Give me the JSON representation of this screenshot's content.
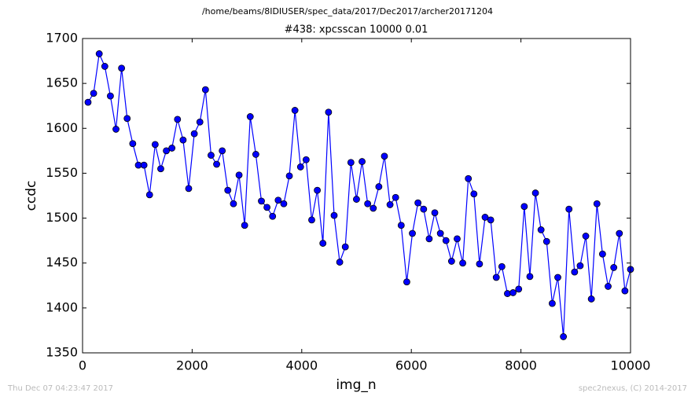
{
  "chart_data": {
    "type": "line",
    "title": "/home/beams/8IDIUSER/spec_data/2017/Dec2017/archer20171204",
    "subtitle": "#438: xpcsscan 10000 0.01",
    "x_label": "img_n",
    "y_label": "ccdc",
    "footer_left": "Thu Dec 07 04:23:47 2017",
    "footer_right": "spec2nexus, (C) 2014-2017",
    "x": [
      100,
      202,
      304,
      406,
      508,
      610,
      712,
      814,
      916,
      1019,
      1121,
      1223,
      1325,
      1427,
      1529,
      1631,
      1733,
      1835,
      1937,
      2039,
      2141,
      2243,
      2345,
      2447,
      2549,
      2651,
      2754,
      2856,
      2958,
      3060,
      3162,
      3264,
      3366,
      3468,
      3570,
      3672,
      3774,
      3876,
      3978,
      4080,
      4182,
      4284,
      4386,
      4489,
      4591,
      4693,
      4795,
      4897,
      4999,
      5101,
      5203,
      5305,
      5407,
      5509,
      5611,
      5713,
      5815,
      5917,
      6019,
      6121,
      6224,
      6326,
      6428,
      6530,
      6632,
      6734,
      6836,
      6938,
      7040,
      7142,
      7244,
      7346,
      7448,
      7550,
      7652,
      7754,
      7856,
      7959,
      8061,
      8163,
      8265,
      8367,
      8469,
      8571,
      8673,
      8775,
      8877,
      8979,
      9081,
      9183,
      9285,
      9387,
      9489,
      9591,
      9694,
      9796,
      9898,
      10000
    ],
    "series": [
      {
        "name": "ccdc",
        "color": "#0000ff",
        "marker_edge": "#000000",
        "values": [
          1629,
          1639,
          1683,
          1669,
          1636,
          1599,
          1667,
          1611,
          1583,
          1559,
          1559,
          1526,
          1582,
          1555,
          1575,
          1578,
          1610,
          1587,
          1533,
          1594,
          1607,
          1643,
          1570,
          1560,
          1575,
          1531,
          1516,
          1548,
          1492,
          1613,
          1571,
          1519,
          1512,
          1502,
          1520,
          1516,
          1547,
          1620,
          1557,
          1565,
          1498,
          1531,
          1472,
          1618,
          1503,
          1451,
          1468,
          1562,
          1521,
          1563,
          1516,
          1511,
          1535,
          1569,
          1515,
          1523,
          1492,
          1429,
          1483,
          1517,
          1510,
          1477,
          1506,
          1483,
          1475,
          1452,
          1477,
          1450,
          1544,
          1527,
          1449,
          1501,
          1498,
          1434,
          1446,
          1416,
          1417,
          1421,
          1513,
          1435,
          1528,
          1487,
          1474,
          1405,
          1434,
          1368,
          1510,
          1440,
          1447,
          1480,
          1410,
          1516,
          1460,
          1424,
          1445,
          1483,
          1419,
          1443
        ]
      }
    ],
    "xlim": [
      0,
      10000
    ],
    "xticks": [
      0,
      2000,
      4000,
      6000,
      8000,
      10000
    ],
    "ylim": [
      1350,
      1700
    ],
    "yticks": [
      1350,
      1400,
      1450,
      1500,
      1550,
      1600,
      1650,
      1700
    ],
    "grid": false
  }
}
